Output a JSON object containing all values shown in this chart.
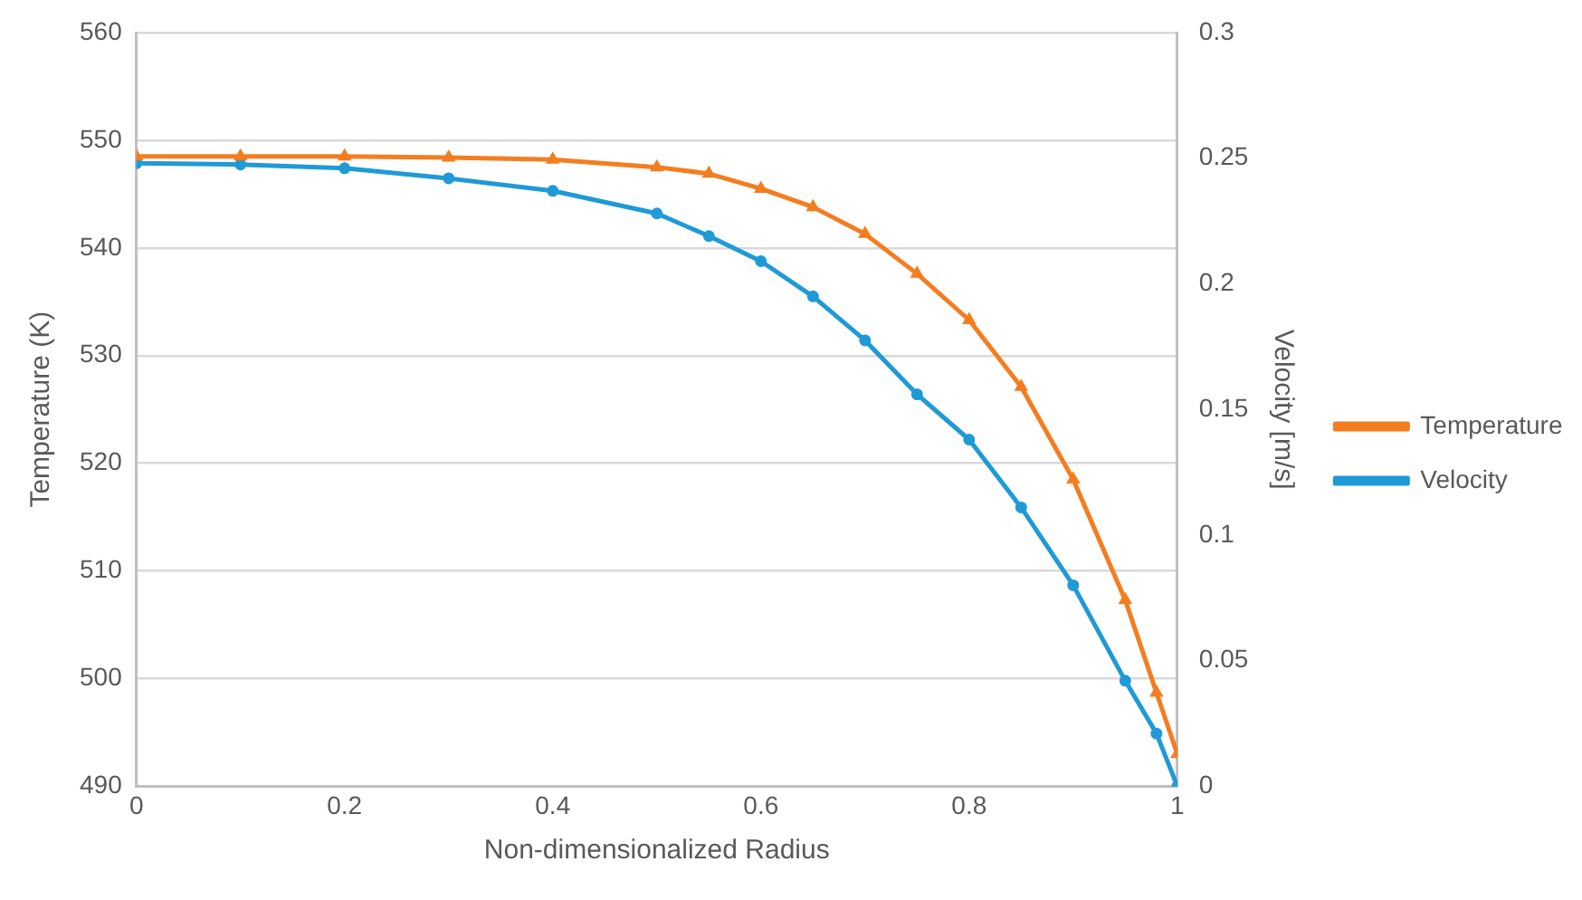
{
  "chart_data": {
    "type": "line",
    "xlabel": "Non-dimensionalized Radius",
    "ylabel": "Temperature (K)",
    "y2label": "Velocity [m/s]",
    "x": [
      0,
      0.1,
      0.2,
      0.3,
      0.4,
      0.5,
      0.55,
      0.6,
      0.65,
      0.7,
      0.75,
      0.8,
      0.85,
      0.9,
      0.95,
      0.98,
      1
    ],
    "xlim": [
      0,
      1
    ],
    "xticks": [
      0,
      0.2,
      0.4,
      0.6,
      0.8,
      1
    ],
    "ylim": [
      490,
      560
    ],
    "yticks": [
      490,
      500,
      510,
      520,
      530,
      540,
      550,
      560
    ],
    "y2lim": [
      0,
      0.3
    ],
    "y2ticks": [
      0,
      0.05,
      0.1,
      0.15,
      0.2,
      0.25,
      0.3
    ],
    "grid": "y",
    "legend": "right",
    "line_style": "solid",
    "series": [
      {
        "name": "Temperature",
        "color": "#f47d20",
        "marker": "triangle",
        "values": [
          548.5,
          548.5,
          548.5,
          548.4,
          548.2,
          547.5,
          546.9,
          545.5,
          543.8,
          541.3,
          537.6,
          533.3,
          527.1,
          518.5,
          507.3,
          498.7,
          493.0
        ]
      },
      {
        "name": "Velocity",
        "color": "#1f9ad6",
        "marker": "circle",
        "axis": "y2",
        "values": [
          0.248,
          0.2475,
          0.246,
          0.242,
          0.237,
          0.228,
          0.219,
          0.209,
          0.195,
          0.1775,
          0.156,
          0.138,
          0.111,
          0.08,
          0.042,
          0.021,
          0
        ]
      }
    ]
  }
}
